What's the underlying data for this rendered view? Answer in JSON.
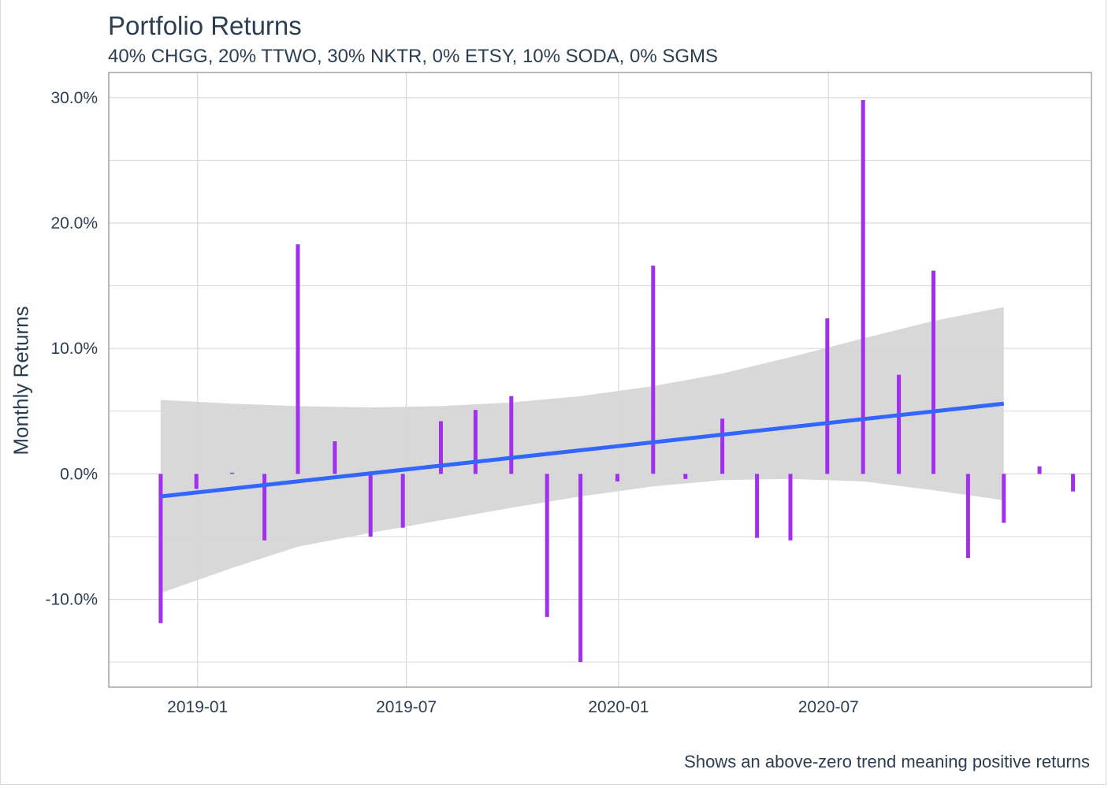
{
  "chart_data": {
    "type": "bar",
    "title": "Portfolio Returns",
    "subtitle": "40% CHGG, 20% TTWO, 30% NKTR, 0% ETSY, 10% SODA, 0% SGMS",
    "caption": "Shows an above-zero trend meaning positive returns",
    "ylabel": "Monthly Returns",
    "xlabel": "",
    "x_ticks": [
      "2019-01",
      "2019-07",
      "2020-01",
      "2020-07"
    ],
    "y_ticks": [
      "-10.0%",
      "0.0%",
      "10.0%",
      "20.0%",
      "30.0%"
    ],
    "ylim": [
      -17,
      32
    ],
    "grid": true,
    "legend": "none",
    "colors": {
      "bar": "#a030ee",
      "trend": "#3366ff",
      "band": "#d6d6d6",
      "grid": "#d9d9d9",
      "panel_border": "#8c8c8c"
    },
    "series": [
      {
        "x": [
          "2018-11-30",
          "2018-12-31",
          "2019-01-31",
          "2019-02-28",
          "2019-03-29",
          "2019-04-30",
          "2019-05-31",
          "2019-06-28",
          "2019-07-31",
          "2019-08-30",
          "2019-09-30",
          "2019-10-31",
          "2019-11-29",
          "2019-12-31",
          "2020-01-31",
          "2020-02-28",
          "2020-03-31",
          "2020-04-30",
          "2020-05-29",
          "2020-06-30",
          "2020-07-31",
          "2020-08-31",
          "2020-09-30",
          "2020-10-30",
          "2020-11-30",
          "2020-12-31",
          "2021-01-29"
        ],
        "values": [
          -11.9,
          -1.2,
          0.1,
          -5.3,
          18.3,
          2.6,
          -5.0,
          -4.3,
          4.2,
          5.1,
          6.2,
          -11.4,
          -15.0,
          -0.6,
          16.6,
          -0.4,
          4.4,
          -5.1,
          -5.3,
          12.4,
          29.8,
          7.9,
          16.2,
          -6.7,
          -3.9,
          0.6,
          -1.4
        ]
      }
    ],
    "trend": {
      "method": "linear",
      "start": -1.8,
      "end": 5.6,
      "band_x": [
        "2018-11-30",
        "2019-01-31",
        "2019-03-29",
        "2019-05-31",
        "2019-07-31",
        "2019-09-30",
        "2019-11-29",
        "2020-01-31",
        "2020-03-31",
        "2020-05-29",
        "2020-07-31",
        "2020-09-30",
        "2020-11-30"
      ],
      "band_upper": [
        5.9,
        5.6,
        5.4,
        5.3,
        5.4,
        5.7,
        6.2,
        7.0,
        8.0,
        9.3,
        10.8,
        12.2,
        13.3
      ],
      "band_lower": [
        -9.5,
        -7.5,
        -5.8,
        -4.7,
        -3.7,
        -2.7,
        -1.8,
        -1.0,
        -0.5,
        -0.4,
        -0.6,
        -1.3,
        -2.1
      ]
    }
  }
}
